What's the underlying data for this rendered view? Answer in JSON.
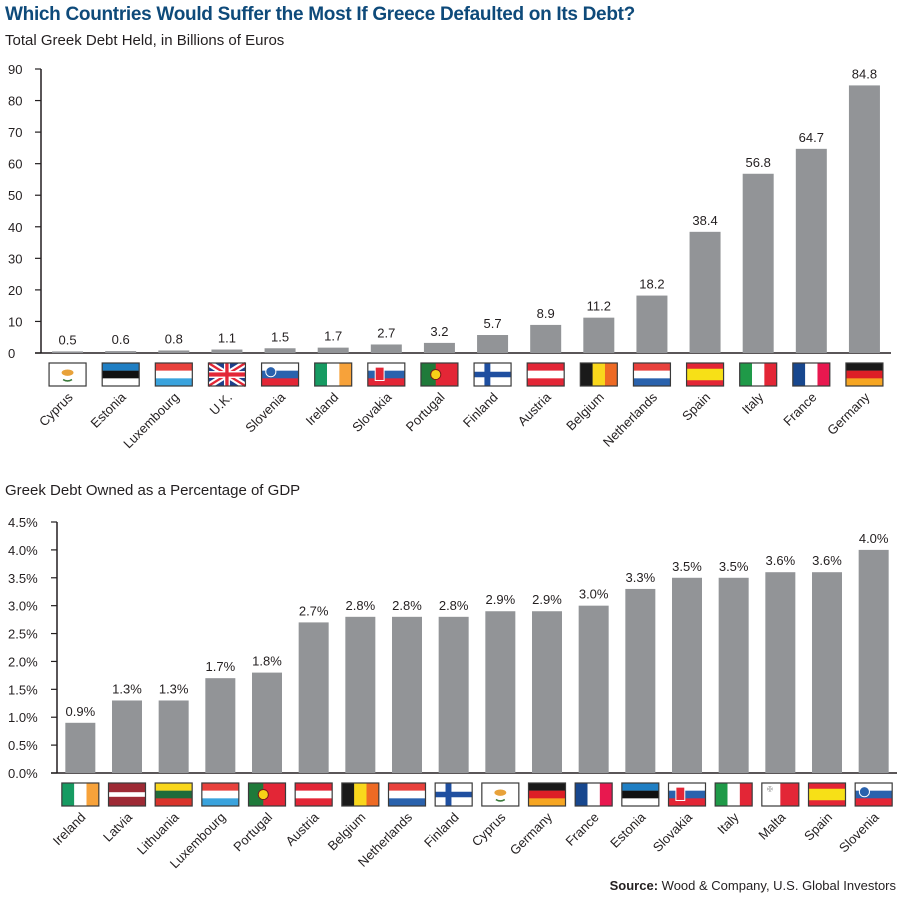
{
  "title": "Which Countries Would Suffer the Most If Greece Defaulted on Its Debt?",
  "source_label": "Source:",
  "source_text": "Wood & Company, U.S. Global Investors",
  "colors": {
    "title": "#0e4a7a",
    "bar": "#929497",
    "axis": "#231f20"
  },
  "chart_data": [
    {
      "type": "bar",
      "title": "Total Greek Debt Held, in Billions of Euros",
      "xlabel": "",
      "ylabel": "",
      "ylim": [
        0,
        90
      ],
      "yticks": [
        0,
        10,
        20,
        30,
        40,
        50,
        60,
        70,
        80,
        90
      ],
      "ytick_labels": [
        "0",
        "10",
        "20",
        "30",
        "40",
        "50",
        "60",
        "70",
        "80",
        "90"
      ],
      "grid": false,
      "legend": "none",
      "categories": [
        "Cyprus",
        "Estonia",
        "Luxembourg",
        "U.K.",
        "Slovenia",
        "Ireland",
        "Slovakia",
        "Portugal",
        "Finland",
        "Austria",
        "Belgium",
        "Netherlands",
        "Spain",
        "Italy",
        "France",
        "Germany"
      ],
      "flags": [
        "cyprus-flag",
        "estonia-flag",
        "luxembourg-flag",
        "uk-flag",
        "slovenia-flag",
        "ireland-flag",
        "slovakia-flag",
        "portugal-flag",
        "finland-flag",
        "austria-flag",
        "belgium-flag",
        "netherlands-flag",
        "spain-flag",
        "italy-flag",
        "france-flag",
        "germany-flag"
      ],
      "values": [
        0.5,
        0.6,
        0.8,
        1.1,
        1.5,
        1.7,
        2.7,
        3.2,
        5.7,
        8.9,
        11.2,
        18.2,
        38.4,
        56.8,
        64.7,
        84.8
      ],
      "data_labels": [
        "0.5",
        "0.6",
        "0.8",
        "1.1",
        "1.5",
        "1.7",
        "2.7",
        "3.2",
        "5.7",
        "8.9",
        "11.2",
        "18.2",
        "38.4",
        "56.8",
        "64.7",
        "84.8"
      ]
    },
    {
      "type": "bar",
      "title": "Greek Debt Owned as a Percentage of GDP",
      "xlabel": "",
      "ylabel": "",
      "ylim": [
        0,
        4.5
      ],
      "yticks": [
        0,
        0.5,
        1.0,
        1.5,
        2.0,
        2.5,
        3.0,
        3.5,
        4.0,
        4.5
      ],
      "ytick_labels": [
        "0.0%",
        "0.5%",
        "1.0%",
        "1.5%",
        "2.0%",
        "2.5%",
        "3.0%",
        "3.5%",
        "4.0%",
        "4.5%"
      ],
      "grid": false,
      "legend": "none",
      "categories": [
        "Ireland",
        "Latvia",
        "Lithuania",
        "Luxembourg",
        "Portugal",
        "Austria",
        "Belgium",
        "Netherlands",
        "Finland",
        "Cyprus",
        "Germany",
        "France",
        "Estonia",
        "Slovakia",
        "Italy",
        "Malta",
        "Spain",
        "Slovenia"
      ],
      "flags": [
        "ireland-flag",
        "latvia-flag",
        "lithuania-flag",
        "luxembourg-flag",
        "portugal-flag",
        "austria-flag",
        "belgium-flag",
        "netherlands-flag",
        "finland-flag",
        "cyprus-flag",
        "germany-flag",
        "france-flag",
        "estonia-flag",
        "slovakia-flag",
        "italy-flag",
        "malta-flag",
        "spain-flag",
        "slovenia-flag"
      ],
      "values": [
        0.9,
        1.3,
        1.3,
        1.7,
        1.8,
        2.7,
        2.8,
        2.8,
        2.8,
        2.9,
        2.9,
        3.0,
        3.3,
        3.5,
        3.5,
        3.6,
        3.6,
        4.0
      ],
      "data_labels": [
        "0.9%",
        "1.3%",
        "1.3%",
        "1.7%",
        "1.8%",
        "2.7%",
        "2.8%",
        "2.8%",
        "2.8%",
        "2.9%",
        "2.9%",
        "3.0%",
        "3.3%",
        "3.5%",
        "3.5%",
        "3.6%",
        "3.6%",
        "4.0%"
      ]
    }
  ]
}
